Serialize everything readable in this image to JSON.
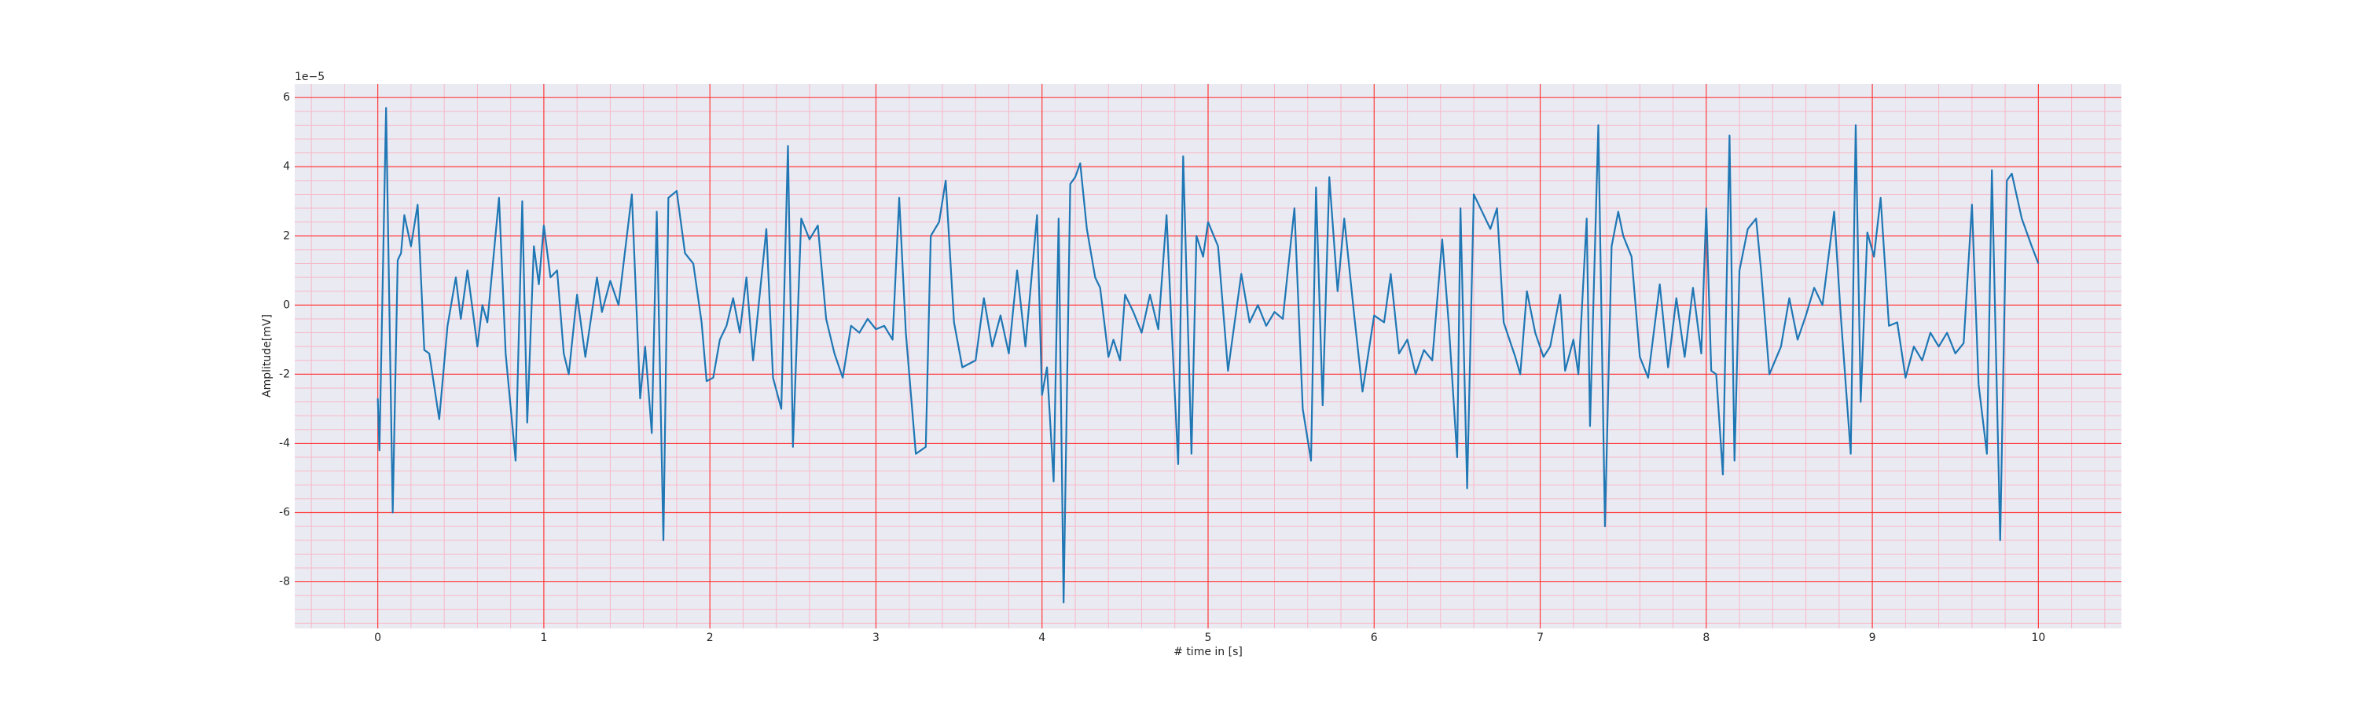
{
  "chart_data": {
    "type": "line",
    "xlabel": "# time in [s]",
    "ylabel": "Amplitude[mV]",
    "y_offset_text": "1e−5",
    "xlim": [
      -0.5,
      10.5
    ],
    "ylim": [
      -9.35,
      6.39
    ],
    "xticks": [
      0,
      1,
      2,
      3,
      4,
      5,
      6,
      7,
      8,
      9,
      10
    ],
    "yticks": [
      -8,
      -6,
      -4,
      -2,
      0,
      2,
      4,
      6
    ],
    "grid": true,
    "grid_color": "#ff3b3b",
    "minor_grid_color": "#f7b8c8",
    "xminor_divisions": 5,
    "yminor_divisions": 5,
    "background": "#eaeaf2",
    "x": [
      0,
      0.01,
      0.05,
      0.09,
      0.12,
      0.14,
      0.16,
      0.2,
      0.24,
      0.28,
      0.31,
      0.37,
      0.42,
      0.47,
      0.5,
      0.54,
      0.6,
      0.63,
      0.66,
      0.73,
      0.77,
      0.83,
      0.87,
      0.9,
      0.94,
      0.97,
      1.0,
      1.04,
      1.08,
      1.12,
      1.15,
      1.2,
      1.25,
      1.32,
      1.35,
      1.4,
      1.45,
      1.53,
      1.58,
      1.61,
      1.65,
      1.68,
      1.72,
      1.75,
      1.8,
      1.85,
      1.9,
      1.95,
      1.98,
      2.02,
      2.06,
      2.1,
      2.14,
      2.18,
      2.22,
      2.26,
      2.3,
      2.34,
      2.38,
      2.43,
      2.47,
      2.5,
      2.55,
      2.6,
      2.65,
      2.7,
      2.75,
      2.8,
      2.85,
      2.9,
      2.95,
      3.0,
      3.05,
      3.1,
      3.14,
      3.18,
      3.24,
      3.3,
      3.33,
      3.38,
      3.42,
      3.47,
      3.52,
      3.6,
      3.65,
      3.7,
      3.75,
      3.8,
      3.85,
      3.9,
      3.97,
      4.0,
      4.03,
      4.07,
      4.1,
      4.13,
      4.17,
      4.2,
      4.23,
      4.27,
      4.32,
      4.35,
      4.4,
      4.43,
      4.47,
      4.5,
      4.55,
      4.6,
      4.65,
      4.7,
      4.75,
      4.78,
      4.82,
      4.85,
      4.9,
      4.93,
      4.97,
      5.0,
      5.06,
      5.12,
      5.2,
      5.25,
      5.3,
      5.35,
      5.4,
      5.45,
      5.52,
      5.57,
      5.62,
      5.65,
      5.69,
      5.73,
      5.78,
      5.82,
      5.88,
      5.93,
      6.0,
      6.06,
      6.1,
      6.15,
      6.2,
      6.25,
      6.3,
      6.35,
      6.41,
      6.45,
      6.5,
      6.52,
      6.56,
      6.6,
      6.65,
      6.7,
      6.74,
      6.78,
      6.85,
      6.88,
      6.92,
      6.97,
      7.02,
      7.06,
      7.12,
      7.15,
      7.2,
      7.23,
      7.28,
      7.3,
      7.35,
      7.39,
      7.43,
      7.47,
      7.5,
      7.55,
      7.6,
      7.65,
      7.72,
      7.77,
      7.82,
      7.87,
      7.92,
      7.97,
      8.0,
      8.03,
      8.06,
      8.1,
      8.14,
      8.17,
      8.2,
      8.25,
      8.3,
      8.33,
      8.38,
      8.45,
      8.5,
      8.55,
      8.6,
      8.65,
      8.7,
      8.77,
      8.81,
      8.87,
      8.9,
      8.93,
      8.97,
      9.01,
      9.05,
      9.1,
      9.15,
      9.2,
      9.25,
      9.3,
      9.35,
      9.4,
      9.45,
      9.5,
      9.55,
      9.6,
      9.64,
      9.69,
      9.72,
      9.77,
      9.81,
      9.84,
      9.9,
      9.96,
      10.0
    ],
    "series": [
      {
        "color": "#1f77b4",
        "values": [
          -2.7,
          -4.2,
          5.7,
          -6.0,
          1.3,
          1.5,
          2.6,
          1.7,
          2.9,
          -1.3,
          -1.4,
          -3.3,
          -0.6,
          0.8,
          -0.4,
          1.0,
          -1.2,
          0.0,
          -0.5,
          3.1,
          -1.4,
          -4.5,
          3.0,
          -3.4,
          1.7,
          0.6,
          2.3,
          0.8,
          1.0,
          -1.4,
          -2.0,
          0.3,
          -1.5,
          0.8,
          -0.2,
          0.7,
          0.0,
          3.2,
          -2.7,
          -1.2,
          -3.7,
          2.7,
          -6.8,
          3.1,
          3.3,
          1.5,
          1.2,
          -0.5,
          -2.2,
          -2.1,
          -1.0,
          -0.6,
          0.2,
          -0.8,
          0.8,
          -1.6,
          0.3,
          2.2,
          -2.1,
          -3.0,
          4.6,
          -4.1,
          2.5,
          1.9,
          2.3,
          -0.4,
          -1.4,
          -2.1,
          -0.6,
          -0.8,
          -0.4,
          -0.7,
          -0.6,
          -1.0,
          3.1,
          -0.8,
          -4.3,
          -4.1,
          2.0,
          2.4,
          3.6,
          -0.5,
          -1.8,
          -1.6,
          0.2,
          -1.2,
          -0.3,
          -1.4,
          1.0,
          -1.2,
          2.6,
          -2.6,
          -1.8,
          -5.1,
          2.5,
          -8.6,
          3.5,
          3.7,
          4.1,
          2.2,
          0.8,
          0.5,
          -1.5,
          -1.0,
          -1.6,
          0.3,
          -0.2,
          -0.8,
          0.3,
          -0.7,
          2.6,
          -0.6,
          -4.6,
          4.3,
          -4.3,
          2.0,
          1.4,
          2.4,
          1.7,
          -1.9,
          0.9,
          -0.5,
          0.0,
          -0.6,
          -0.2,
          -0.4,
          2.8,
          -3.0,
          -4.5,
          3.4,
          -2.9,
          3.7,
          0.4,
          2.5,
          -0.3,
          -2.5,
          -0.3,
          -0.5,
          0.9,
          -1.4,
          -1.0,
          -2.0,
          -1.3,
          -1.6,
          1.9,
          -0.6,
          -4.4,
          2.8,
          -5.3,
          3.2,
          2.7,
          2.2,
          2.8,
          -0.5,
          -1.5,
          -2.0,
          0.4,
          -0.8,
          -1.5,
          -1.2,
          0.3,
          -1.9,
          -1.0,
          -2.0,
          2.5,
          -3.5,
          5.2,
          -6.4,
          1.7,
          2.7,
          2.0,
          1.4,
          -1.5,
          -2.1,
          0.6,
          -1.8,
          0.2,
          -1.5,
          0.5,
          -1.4,
          2.8,
          -1.9,
          -2.0,
          -4.9,
          4.9,
          -4.5,
          1.0,
          2.2,
          2.5,
          1.0,
          -2.0,
          -1.2,
          0.2,
          -1.0,
          -0.3,
          0.5,
          0.0,
          2.7,
          -0.3,
          -4.3,
          5.2,
          -2.8,
          2.1,
          1.4,
          3.1,
          -0.6,
          -0.5,
          -2.1,
          -1.2,
          -1.6,
          -0.8,
          -1.2,
          -0.8,
          -1.4,
          -1.1,
          2.9,
          -2.3,
          -4.3,
          3.9,
          -6.8,
          3.6,
          3.8,
          2.5,
          1.7,
          1.2
        ]
      }
    ]
  }
}
